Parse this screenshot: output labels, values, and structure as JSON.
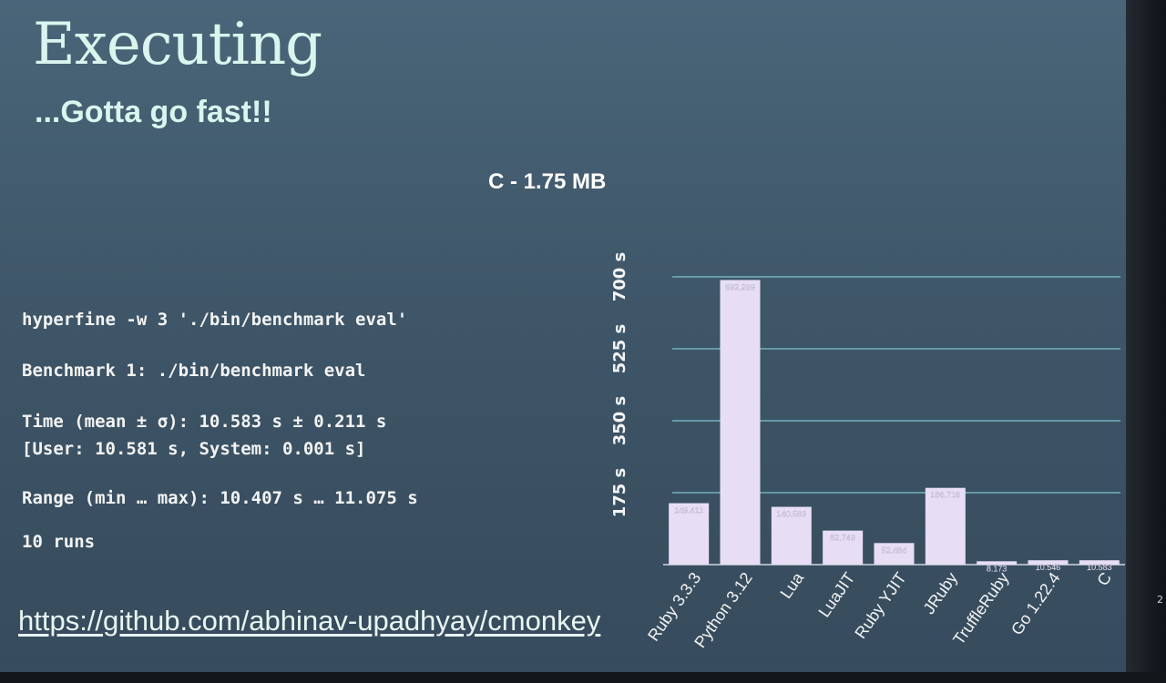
{
  "slide": {
    "title": "Executing",
    "subtitle": "...Gotta go fast!!",
    "page_number": "2"
  },
  "terminal": {
    "command": "hyperfine -w 3 './bin/benchmark eval'",
    "benchmark_line": "Benchmark 1: ./bin/benchmark eval",
    "time_line": "Time (mean ± σ): 10.583 s ± 0.211 s",
    "user_system_line": "[User: 10.581 s, System: 0.001 s]",
    "range_line": "Range (min … max): 10.407 s … 11.075 s",
    "runs_line": "10 runs"
  },
  "link": {
    "text": "https://github.com/abhinav-upadhyay/cmonkey"
  },
  "colors": {
    "bar": "#e7def6",
    "gridline": "#7fc4cf",
    "text": "#f3f3f3",
    "accent_text": "#d9f5ee"
  },
  "chart_data": {
    "type": "bar",
    "title": "C - 1.75 MB",
    "categories": [
      "Ruby 3.3.3",
      "Python 3.12",
      "Lua",
      "LuaJIT",
      "Ruby YJIT",
      "JRuby",
      "TruffleRuby",
      "Go 1.22.4",
      "C"
    ],
    "values": [
      149.411,
      692.299,
      140.583,
      82.749,
      52.484,
      186.716,
      8.173,
      10.546,
      10.583
    ],
    "value_labels": [
      "149.411",
      "692.299",
      "140.583",
      "82.749",
      "52.484",
      "186.716",
      "8.173",
      "10.546",
      "10.583"
    ],
    "yticks": [
      175,
      350,
      525,
      700
    ],
    "ytick_labels": [
      "175 s",
      "350 s",
      "525 s",
      "700 s"
    ],
    "ylim": [
      0,
      700
    ],
    "grid": true,
    "xlabel": "",
    "ylabel": ""
  }
}
